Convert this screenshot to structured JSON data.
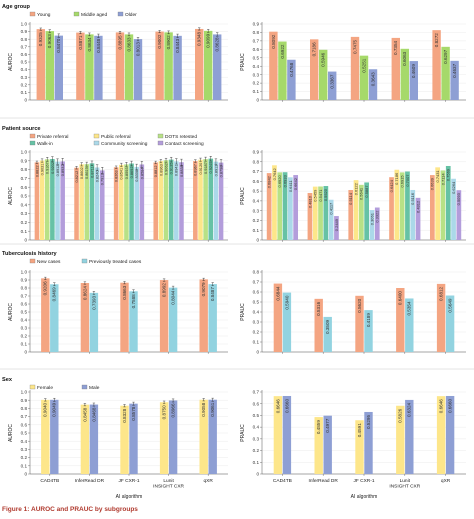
{
  "figure": {
    "caption": "Figure 1: AUROC and PRAUC by subgroups"
  },
  "algorithms": [
    "CAD4TB",
    "InferRead DR",
    "JF CXR-1",
    "Lunit INSIGHT CXR",
    "qXR"
  ],
  "x_axis_label": "AI algorithm",
  "chart_data": [
    {
      "type": "bar",
      "panel": "Age group",
      "metric": "AUROC",
      "title": "Age group",
      "ylabel": "AUROC",
      "ylim": [
        0,
        1.0
      ],
      "yticks": [
        0,
        0.1,
        0.2,
        0.3,
        0.4,
        0.5,
        0.6,
        0.7,
        0.8,
        0.9,
        1.0
      ],
      "legend": [
        "Young",
        "Middle aged",
        "Older"
      ],
      "colors": [
        "#f4a582",
        "#a6d96a",
        "#8e9fd4"
      ],
      "categories": [
        "CAD4TB",
        "InferRead DR",
        "JF CXR-1",
        "Lunit INSIGHT CXR",
        "qXR"
      ],
      "series": [
        {
          "name": "Young",
          "values": [
            0.9325,
            0.8871,
            0.8895,
            0.9002,
            0.9348
          ]
        },
        {
          "name": "Middle aged",
          "values": [
            0.9063,
            0.8634,
            0.8633,
            0.8902,
            0.9099
          ]
        },
        {
          "name": "Older",
          "values": [
            0.847,
            0.8448,
            0.8013,
            0.8443,
            0.8628
          ]
        }
      ]
    },
    {
      "type": "bar",
      "panel": "Age group",
      "metric": "PRAUC",
      "ylabel": "PRAUC",
      "ylim": [
        0,
        0.9
      ],
      "yticks": [
        0,
        0.1,
        0.2,
        0.3,
        0.4,
        0.5,
        0.6,
        0.7,
        0.8,
        0.9
      ],
      "categories": [
        "CAD4TB",
        "InferRead DR",
        "JF CXR-1",
        "Lunit INSIGHT CXR",
        "qXR"
      ],
      "series": [
        {
          "name": "Young",
          "values": [
            0.8092,
            0.7186,
            0.7475,
            0.7354,
            0.8272
          ]
        },
        {
          "name": "Middle aged",
          "values": [
            0.6922,
            0.5946,
            0.5251,
            0.6063,
            0.6297
          ]
        },
        {
          "name": "Older",
          "values": [
            0.4768,
            0.3367,
            0.3643,
            0.4609,
            0.4637
          ]
        }
      ]
    },
    {
      "type": "bar",
      "panel": "Patient source",
      "metric": "AUROC",
      "title": "Patient source",
      "ylabel": "AUROC",
      "ylim": [
        0,
        1.0
      ],
      "yticks": [
        0,
        0.1,
        0.2,
        0.3,
        0.4,
        0.5,
        0.6,
        0.7,
        0.8,
        0.9,
        1.0
      ],
      "legend": [
        "Private referral",
        "Public referral",
        "DOTS retested",
        "Walk-in",
        "Community screening",
        "Contact screening"
      ],
      "colors": [
        "#f4a582",
        "#fde68a",
        "#b8e186",
        "#66c2a5",
        "#abd9e9",
        "#b39ddb"
      ],
      "categories": [
        "CAD4TB",
        "InferRead DR",
        "JF CXR-1",
        "Lunit INSIGHT CXR",
        "qXR"
      ],
      "series": [
        {
          "name": "Private referral",
          "values": [
            0.8822,
            0.8212,
            0.8263,
            0.8812,
            0.8967
          ]
        },
        {
          "name": "Public referral",
          "values": [
            0.9031,
            0.8602,
            0.8541,
            0.8963,
            0.912
          ]
        },
        {
          "name": "DOTS retested",
          "values": [
            0.9167,
            0.8619,
            0.8593,
            0.9062,
            0.9187
          ]
        },
        {
          "name": "Walk-in",
          "values": [
            0.9202,
            0.8711,
            0.8692,
            0.9135,
            0.9245
          ]
        },
        {
          "name": "Community screening",
          "values": [
            0.8913,
            0.824,
            0.8308,
            0.8941,
            0.8913
          ]
        },
        {
          "name": "Contact screening",
          "values": [
            0.8932,
            0.7912,
            0.8584,
            0.8838,
            0.8798
          ]
        }
      ]
    },
    {
      "type": "bar",
      "panel": "Patient source",
      "metric": "PRAUC",
      "ylabel": "PRAUC",
      "ylim": [
        0,
        0.9
      ],
      "yticks": [
        0,
        0.1,
        0.2,
        0.3,
        0.4,
        0.5,
        0.6,
        0.7,
        0.8,
        0.9
      ],
      "categories": [
        "CAD4TB",
        "InferRead DR",
        "JF CXR-1",
        "Lunit INSIGHT CXR",
        "qXR"
      ],
      "series": [
        {
          "name": "Private referral",
          "values": [
            0.6842,
            0.481,
            0.5114,
            0.6424,
            0.6639
          ]
        },
        {
          "name": "Public referral",
          "values": [
            0.7642,
            0.5459,
            0.6122,
            0.7186,
            0.7431
          ]
        },
        {
          "name": "DOTS retested",
          "values": [
            0.692,
            0.5471,
            0.5641,
            0.6915,
            0.7114
          ]
        },
        {
          "name": "Walk-in",
          "values": [
            0.6933,
            0.552,
            0.5887,
            0.7007,
            0.7569
          ]
        },
        {
          "name": "Community screening",
          "values": [
            0.6411,
            0.4117,
            0.3061,
            0.5116,
            0.6264
          ]
        },
        {
          "name": "Contact screening",
          "values": [
            0.6642,
            0.2449,
            0.3322,
            0.4312,
            0.5093
          ]
        }
      ]
    },
    {
      "type": "bar",
      "panel": "Tuberculosis history",
      "metric": "AUROC",
      "title": "Tuberculosis history",
      "ylabel": "AUROC",
      "ylim": [
        0,
        1.0
      ],
      "yticks": [
        0,
        0.1,
        0.2,
        0.3,
        0.4,
        0.5,
        0.6,
        0.7,
        0.8,
        0.9,
        1.0
      ],
      "legend": [
        "New cases",
        "Previously treated cases"
      ],
      "colors": [
        "#f4a582",
        "#92d3e0"
      ],
      "categories": [
        "CAD4TB",
        "InferRead DR",
        "JF CXR-1",
        "Lunit INSIGHT CXR",
        "qXR"
      ],
      "series": [
        {
          "name": "New cases",
          "values": [
            0.9206,
            0.8624,
            0.8663,
            0.8992,
            0.9079
          ]
        },
        {
          "name": "Previously treated cases",
          "values": [
            0.8469,
            0.7393,
            0.7588,
            0.8044,
            0.8487
          ]
        }
      ]
    },
    {
      "type": "bar",
      "panel": "Tuberculosis history",
      "metric": "PRAUC",
      "ylabel": "PRAUC",
      "ylim": [
        0,
        0.8
      ],
      "yticks": [
        0,
        0.1,
        0.2,
        0.3,
        0.4,
        0.5,
        0.6,
        0.7,
        0.8
      ],
      "categories": [
        "CAD4TB",
        "InferRead DR",
        "JF CXR-1",
        "Lunit INSIGHT CXR",
        "qXR"
      ],
      "series": [
        {
          "name": "New cases",
          "values": [
            0.6844,
            0.5316,
            0.562,
            0.64,
            0.6812
          ]
        },
        {
          "name": "Previously treated cases",
          "values": [
            0.594,
            0.3509,
            0.4189,
            0.5354,
            0.5649
          ]
        }
      ]
    },
    {
      "type": "bar",
      "panel": "Sex",
      "metric": "AUROC",
      "title": "Sex",
      "ylabel": "AUROC",
      "ylim": [
        0,
        1.0
      ],
      "yticks": [
        0,
        0.1,
        0.2,
        0.3,
        0.4,
        0.5,
        0.6,
        0.7,
        0.8,
        0.9,
        1.0
      ],
      "legend": [
        "Female",
        "Male"
      ],
      "colors": [
        "#fde68a",
        "#8e9fd4"
      ],
      "categories": [
        "CAD4TB",
        "InferRead DR",
        "JF CXR-1",
        "Lunit INSIGHT CXR",
        "qXR"
      ],
      "series": [
        {
          "name": "Female",
          "values": [
            0.904,
            0.8458,
            0.8328,
            0.875,
            0.9058
          ]
        },
        {
          "name": "Male",
          "values": [
            0.9049,
            0.8468,
            0.8578,
            0.8966,
            0.9061
          ]
        }
      ]
    },
    {
      "type": "bar",
      "panel": "Sex",
      "metric": "PRAUC",
      "ylabel": "PRAUC",
      "ylim": [
        0,
        0.7
      ],
      "yticks": [
        0,
        0.1,
        0.2,
        0.3,
        0.4,
        0.5,
        0.6,
        0.7
      ],
      "categories": [
        "CAD4TB",
        "InferRead DR",
        "JF CXR-1",
        "Lunit INSIGHT CXR",
        "qXR"
      ],
      "series": [
        {
          "name": "Female",
          "values": [
            0.6646,
            0.4859,
            0.4591,
            0.5826,
            0.6646
          ]
        },
        {
          "name": "Male",
          "values": [
            0.666,
            0.4977,
            0.5295,
            0.6324,
            0.666
          ]
        }
      ]
    }
  ]
}
